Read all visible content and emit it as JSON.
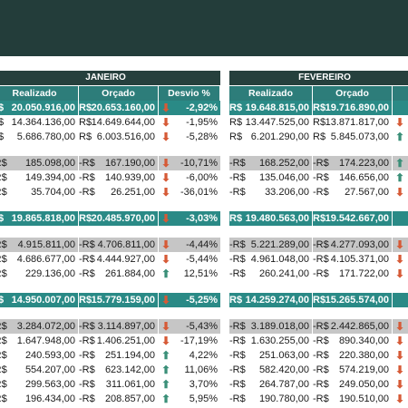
{
  "months": [
    {
      "name": "JANEIRO",
      "headers": [
        "Realizado",
        "Orçado",
        "Desvio %"
      ],
      "rows": [
        {
          "type": "total",
          "r_cur": "R$",
          "r": "20.050.916,00",
          "o_cur": "R$",
          "o": "20.653.160,00",
          "arrow": "down",
          "pct": "-2,92%"
        },
        {
          "type": "plain",
          "r_cur": "R$",
          "r": "14.364.136,00",
          "o_cur": "R$",
          "o": "14.649.644,00",
          "arrow": "down",
          "pct": "-1,95%"
        },
        {
          "type": "plain",
          "r_cur": "R$",
          "r": "5.686.780,00",
          "o_cur": "R$",
          "o": "6.003.516,00",
          "arrow": "down",
          "pct": "-5,28%"
        },
        {
          "type": "gap"
        },
        {
          "type": "sub",
          "r_cur": "-R$",
          "r": "185.098,00",
          "o_cur": "-R$",
          "o": "167.190,00",
          "arrow": "down",
          "pct": "-10,71%"
        },
        {
          "type": "plain",
          "r_cur": "-R$",
          "r": "149.394,00",
          "o_cur": "-R$",
          "o": "140.939,00",
          "arrow": "down",
          "pct": "-6,00%"
        },
        {
          "type": "plain",
          "r_cur": "-R$",
          "r": "35.704,00",
          "o_cur": "-R$",
          "o": "26.251,00",
          "arrow": "down",
          "pct": "-36,01%"
        },
        {
          "type": "gap"
        },
        {
          "type": "total",
          "r_cur": "R$",
          "r": "19.865.818,00",
          "o_cur": "R$",
          "o": "20.485.970,00",
          "arrow": "down",
          "pct": "-3,03%"
        },
        {
          "type": "gap"
        },
        {
          "type": "sub",
          "r_cur": "-R$",
          "r": "4.915.811,00",
          "o_cur": "-R$",
          "o": "4.706.811,00",
          "arrow": "down",
          "pct": "-4,44%"
        },
        {
          "type": "plain",
          "r_cur": "-R$",
          "r": "4.686.677,00",
          "o_cur": "-R$",
          "o": "4.444.927,00",
          "arrow": "down",
          "pct": "-5,44%"
        },
        {
          "type": "plain",
          "r_cur": "-R$",
          "r": "229.136,00",
          "o_cur": "-R$",
          "o": "261.884,00",
          "arrow": "up",
          "pct": "12,51%"
        },
        {
          "type": "gap"
        },
        {
          "type": "total",
          "r_cur": "R$",
          "r": "14.950.007,00",
          "o_cur": "R$",
          "o": "15.779.159,00",
          "arrow": "down",
          "pct": "-5,25%"
        },
        {
          "type": "gap"
        },
        {
          "type": "sub",
          "r_cur": "-R$",
          "r": "3.284.072,00",
          "o_cur": "-R$",
          "o": "3.114.897,00",
          "arrow": "down",
          "pct": "-5,43%"
        },
        {
          "type": "plain",
          "r_cur": "-R$",
          "r": "1.647.948,00",
          "o_cur": "-R$",
          "o": "1.406.251,00",
          "arrow": "down",
          "pct": "-17,19%"
        },
        {
          "type": "plain",
          "r_cur": "-R$",
          "r": "240.593,00",
          "o_cur": "-R$",
          "o": "251.194,00",
          "arrow": "up",
          "pct": "4,22%"
        },
        {
          "type": "plain",
          "r_cur": "-R$",
          "r": "554.207,00",
          "o_cur": "-R$",
          "o": "623.142,00",
          "arrow": "up",
          "pct": "11,06%"
        },
        {
          "type": "plain",
          "r_cur": "-R$",
          "r": "299.563,00",
          "o_cur": "-R$",
          "o": "311.061,00",
          "arrow": "up",
          "pct": "3,70%"
        },
        {
          "type": "plain",
          "r_cur": "-R$",
          "r": "196.434,00",
          "o_cur": "-R$",
          "o": "208.857,00",
          "arrow": "up",
          "pct": "5,95%"
        }
      ]
    },
    {
      "name": "FEVEREIRO",
      "headers": [
        "Realizado",
        "Orçado",
        ""
      ],
      "rows": [
        {
          "type": "total",
          "r_cur": "R$",
          "r": "19.648.815,00",
          "o_cur": "R$",
          "o": "19.716.890,00",
          "arrow": ""
        },
        {
          "type": "plain",
          "r_cur": "R$",
          "r": "13.447.525,00",
          "o_cur": "R$",
          "o": "13.871.817,00",
          "arrow": "down"
        },
        {
          "type": "plain",
          "r_cur": "R$",
          "r": "6.201.290,00",
          "o_cur": "R$",
          "o": "5.845.073,00",
          "arrow": "up"
        },
        {
          "type": "gap"
        },
        {
          "type": "sub",
          "r_cur": "-R$",
          "r": "168.252,00",
          "o_cur": "-R$",
          "o": "174.223,00",
          "arrow": "up"
        },
        {
          "type": "plain",
          "r_cur": "-R$",
          "r": "135.046,00",
          "o_cur": "-R$",
          "o": "146.656,00",
          "arrow": "up"
        },
        {
          "type": "plain",
          "r_cur": "-R$",
          "r": "33.206,00",
          "o_cur": "-R$",
          "o": "27.567,00",
          "arrow": "down"
        },
        {
          "type": "gap"
        },
        {
          "type": "total",
          "r_cur": "R$",
          "r": "19.480.563,00",
          "o_cur": "R$",
          "o": "19.542.667,00",
          "arrow": ""
        },
        {
          "type": "gap"
        },
        {
          "type": "sub",
          "r_cur": "-R$",
          "r": "5.221.289,00",
          "o_cur": "-R$",
          "o": "4.277.093,00",
          "arrow": "down"
        },
        {
          "type": "plain",
          "r_cur": "-R$",
          "r": "4.961.048,00",
          "o_cur": "-R$",
          "o": "4.105.371,00",
          "arrow": "down"
        },
        {
          "type": "plain",
          "r_cur": "-R$",
          "r": "260.241,00",
          "o_cur": "-R$",
          "o": "171.722,00",
          "arrow": "down"
        },
        {
          "type": "gap"
        },
        {
          "type": "total",
          "r_cur": "R$",
          "r": "14.259.274,00",
          "o_cur": "R$",
          "o": "15.265.574,00",
          "arrow": ""
        },
        {
          "type": "gap"
        },
        {
          "type": "sub",
          "r_cur": "-R$",
          "r": "3.189.018,00",
          "o_cur": "-R$",
          "o": "2.442.865,00",
          "arrow": "down"
        },
        {
          "type": "plain",
          "r_cur": "-R$",
          "r": "1.630.255,00",
          "o_cur": "-R$",
          "o": "890.340,00",
          "arrow": "down"
        },
        {
          "type": "plain",
          "r_cur": "-R$",
          "r": "251.063,00",
          "o_cur": "-R$",
          "o": "220.380,00",
          "arrow": "down"
        },
        {
          "type": "plain",
          "r_cur": "-R$",
          "r": "582.420,00",
          "o_cur": "-R$",
          "o": "574.219,00",
          "arrow": "down"
        },
        {
          "type": "plain",
          "r_cur": "-R$",
          "r": "264.787,00",
          "o_cur": "-R$",
          "o": "249.050,00",
          "arrow": "down"
        },
        {
          "type": "plain",
          "r_cur": "-R$",
          "r": "190.780,00",
          "o_cur": "-R$",
          "o": "190.510,00",
          "arrow": "down"
        }
      ]
    }
  ]
}
